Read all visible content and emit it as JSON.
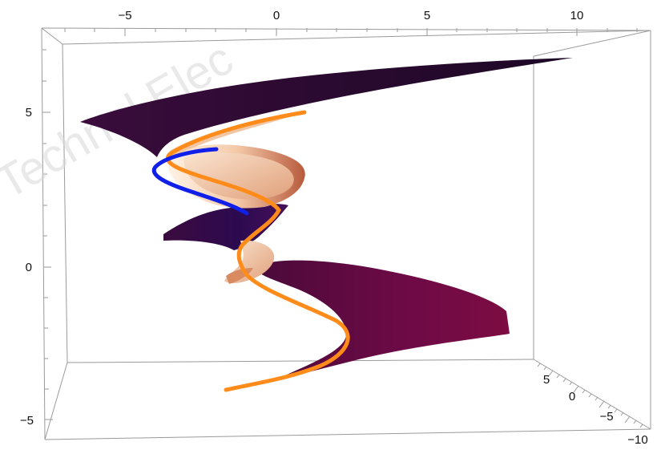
{
  "watermark": "Technol Elec",
  "axes": {
    "top_ticks": [
      "−5",
      "0",
      "5",
      "10"
    ],
    "left_ticks": [
      "5",
      "0",
      "−5"
    ],
    "right_ticks": [
      "5",
      "0",
      "−5",
      "−10"
    ]
  },
  "colors": {
    "surface_dark": "#2a0a30",
    "surface_mid": "#6a0a48",
    "surface_light": "#f6dfc8",
    "curve_orange": "#ff8c1a",
    "curve_blue": "#1020e8",
    "box_line": "#9a9a9a"
  }
}
